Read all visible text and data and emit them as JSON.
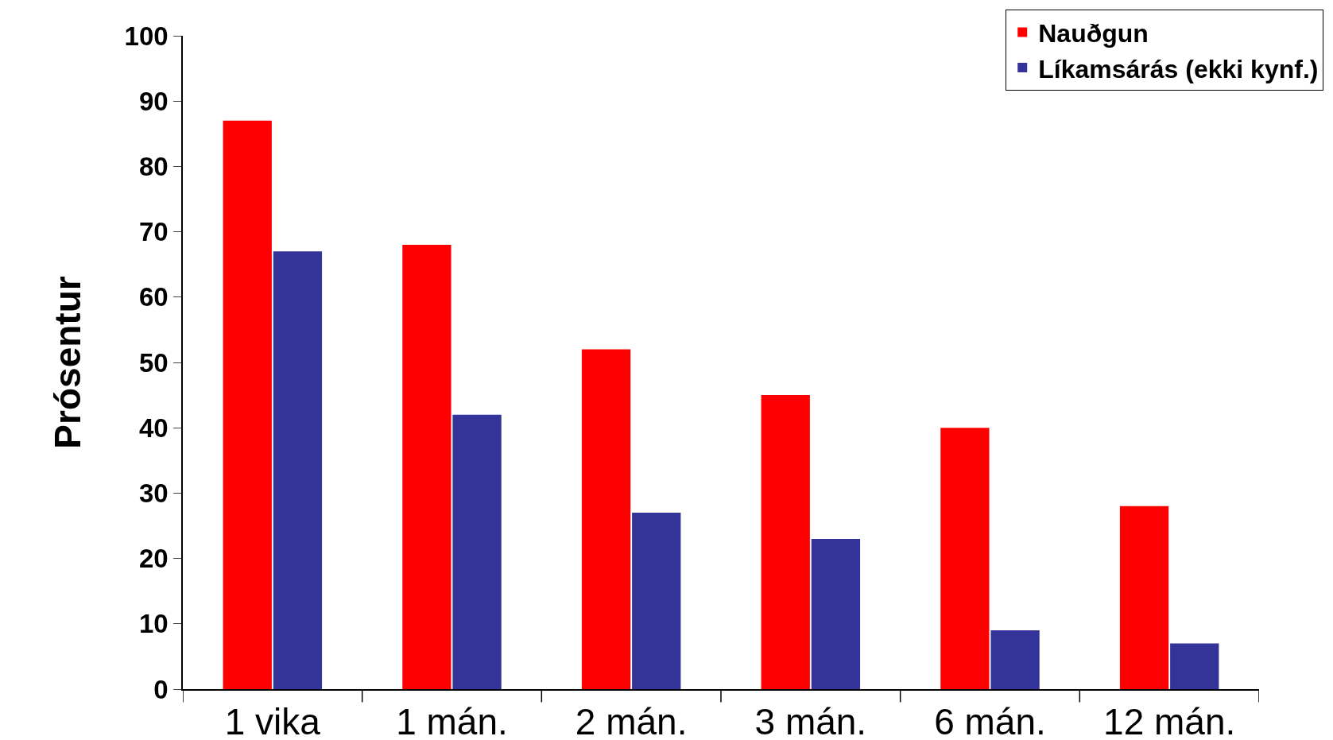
{
  "chart_data": {
    "type": "bar",
    "ylabel": "Prósentur",
    "categories": [
      "1 vika",
      "1 mán.",
      "2 mán.",
      "3 mán.",
      "6 mán.",
      "12 mán."
    ],
    "series": [
      {
        "name": "Nauðgun",
        "color": "#ff0000",
        "values": [
          87,
          68,
          52,
          45,
          40,
          28
        ]
      },
      {
        "name": "Líkamsárás (ekki kynf.)",
        "color": "#333399",
        "values": [
          67,
          42,
          27,
          23,
          9,
          7
        ]
      }
    ],
    "ylim": [
      0,
      100
    ],
    "yticks": [
      0,
      10,
      20,
      30,
      40,
      50,
      60,
      70,
      80,
      90,
      100
    ],
    "grid": false,
    "legend": "top right"
  }
}
